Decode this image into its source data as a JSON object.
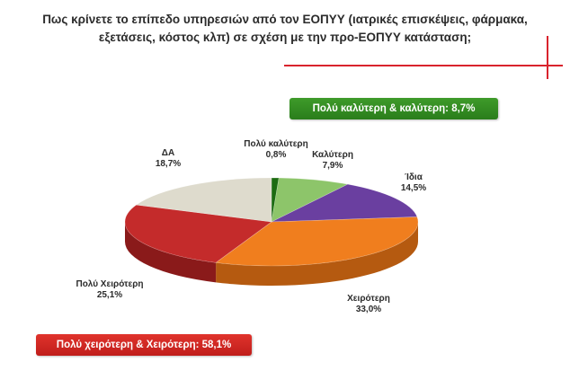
{
  "title": {
    "line1": "Πως κρίνετε το επίπεδο υπηρεσιών από τον ΕΟΠΥΥ (ιατρικές επισκέψεις, φάρμακα,",
    "line2": "εξετάσεις, κόστος κλπ) σε σχέση με την προ-ΕΟΠΥΥ κατάσταση;"
  },
  "badges": {
    "better": "Πολύ καλύτερη & καλύτερη: 8,7%",
    "worse": "Πολύ χειρότερη & Χειρότερη: 58,1%"
  },
  "colors": {
    "accent_red": "#d9232d",
    "badge_green": "#2f8a1f",
    "badge_red": "#d42822"
  },
  "chart_data": {
    "type": "pie",
    "style": "3d",
    "categories": [
      "Πολύ καλύτερη",
      "Καλύτερη",
      "Ίδια",
      "Χειρότερη",
      "Πολύ Χειρότερη",
      "ΔΑ"
    ],
    "values": [
      0.8,
      7.9,
      14.5,
      33.0,
      25.1,
      18.7
    ],
    "value_labels": [
      "0,8%",
      "7,9%",
      "14,5%",
      "33,0%",
      "25,1%",
      "18,7%"
    ],
    "colors": [
      "#1c6b12",
      "#8dc56a",
      "#6a3fa0",
      "#f07e1e",
      "#c42b2b",
      "#dedbcd"
    ],
    "side_colors": [
      "#0f4a0a",
      "#5e9442",
      "#432568",
      "#b55a10",
      "#8a1a1a",
      "#a9a698"
    ],
    "legend": "none"
  }
}
